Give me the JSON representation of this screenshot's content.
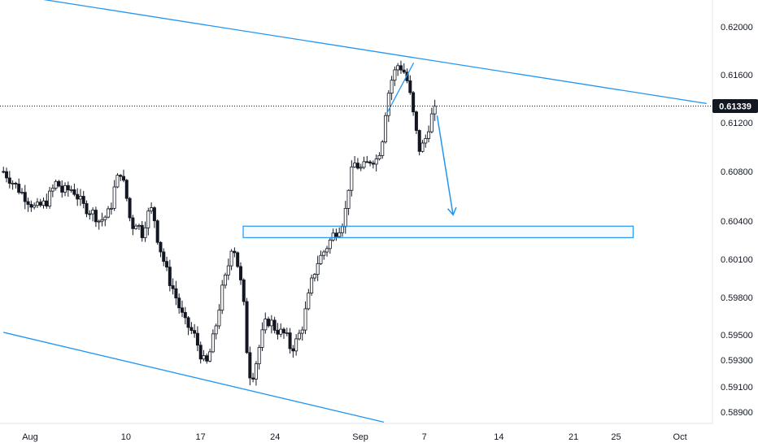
{
  "colors": {
    "candle": "#131722",
    "drawing": "#2196f3",
    "axis_text": "#131722",
    "axis_line": "#e0e3eb",
    "price_line": "#131722",
    "price_tag_bg": "#131722",
    "background": "#ffffff"
  },
  "current_price": {
    "value": 0.61339,
    "label": "0.61339"
  },
  "chart_data": {
    "type": "candlestick",
    "title": "",
    "xlabel": "",
    "ylabel": "",
    "grid": false,
    "x_axis": {
      "ticks": [
        {
          "label": "Aug",
          "day": 0
        },
        {
          "label": "10",
          "day": 9
        },
        {
          "label": "17",
          "day": 16
        },
        {
          "label": "24",
          "day": 23
        },
        {
          "label": "Sep",
          "day": 31
        },
        {
          "label": "7",
          "day": 37
        },
        {
          "label": "14",
          "day": 44
        },
        {
          "label": "21",
          "day": 51
        },
        {
          "label": "25",
          "day": 55
        },
        {
          "label": "Oct",
          "day": 61
        }
      ]
    },
    "y_axis": {
      "ylim": [
        0.5875,
        0.6215
      ],
      "ticks": [
        {
          "label": "0.62000",
          "value": 0.62
        },
        {
          "label": "0.61600",
          "value": 0.616
        },
        {
          "label": "0.61200",
          "value": 0.612
        },
        {
          "label": "0.60800",
          "value": 0.608
        },
        {
          "label": "0.60400",
          "value": 0.604
        },
        {
          "label": "0.60100",
          "value": 0.601
        },
        {
          "label": "0.59800",
          "value": 0.598
        },
        {
          "label": "0.59500",
          "value": 0.595
        },
        {
          "label": "0.59300",
          "value": 0.593
        },
        {
          "label": "0.59100",
          "value": 0.591
        },
        {
          "label": "0.58900",
          "value": 0.589
        }
      ]
    },
    "anchor_points": [
      [
        -2.5,
        0.608
      ],
      [
        -1.5,
        0.607
      ],
      [
        -0.5,
        0.606
      ],
      [
        0.5,
        0.605
      ],
      [
        1.5,
        0.6055
      ],
      [
        2.5,
        0.6072
      ],
      [
        3.0,
        0.6064
      ],
      [
        4.0,
        0.6066
      ],
      [
        5.0,
        0.6052
      ],
      [
        6.0,
        0.6046
      ],
      [
        6.5,
        0.604
      ],
      [
        7.0,
        0.6043
      ],
      [
        7.5,
        0.6048
      ],
      [
        8.0,
        0.607
      ],
      [
        8.5,
        0.608
      ],
      [
        9.0,
        0.6062
      ],
      [
        9.5,
        0.6035
      ],
      [
        10.0,
        0.604
      ],
      [
        10.5,
        0.603
      ],
      [
        11.0,
        0.6045
      ],
      [
        11.5,
        0.605
      ],
      [
        12.0,
        0.6025
      ],
      [
        12.5,
        0.601
      ],
      [
        13.0,
        0.5995
      ],
      [
        13.5,
        0.5985
      ],
      [
        14.0,
        0.5972
      ],
      [
        14.5,
        0.596
      ],
      [
        15.0,
        0.5955
      ],
      [
        15.5,
        0.5948
      ],
      [
        16.0,
        0.5935
      ],
      [
        16.5,
        0.5925
      ],
      [
        17.0,
        0.594
      ],
      [
        17.5,
        0.596
      ],
      [
        18.0,
        0.5985
      ],
      [
        18.5,
        0.6
      ],
      [
        19.0,
        0.6025
      ],
      [
        19.5,
        0.6005
      ],
      [
        20.0,
        0.598
      ],
      [
        20.5,
        0.592
      ],
      [
        21.0,
        0.592
      ],
      [
        21.5,
        0.594
      ],
      [
        22.0,
        0.5958
      ],
      [
        22.5,
        0.5962
      ],
      [
        23.0,
        0.5955
      ],
      [
        23.5,
        0.5952
      ],
      [
        24.0,
        0.595
      ],
      [
        24.5,
        0.5938
      ],
      [
        25.0,
        0.5945
      ],
      [
        25.5,
        0.5955
      ],
      [
        26.0,
        0.5975
      ],
      [
        26.5,
        0.5995
      ],
      [
        27.0,
        0.6008
      ],
      [
        27.5,
        0.6015
      ],
      [
        28.0,
        0.6022
      ],
      [
        28.5,
        0.603
      ],
      [
        29.0,
        0.6035
      ],
      [
        29.5,
        0.6042
      ],
      [
        30.0,
        0.6075
      ],
      [
        30.5,
        0.6087
      ],
      [
        31.0,
        0.6082
      ],
      [
        31.5,
        0.6085
      ],
      [
        32.0,
        0.609
      ],
      [
        32.5,
        0.609
      ],
      [
        33.0,
        0.6102
      ],
      [
        33.5,
        0.614
      ],
      [
        34.0,
        0.6158
      ],
      [
        34.5,
        0.6168
      ],
      [
        35.0,
        0.6165
      ],
      [
        35.5,
        0.6152
      ],
      [
        36.0,
        0.6125
      ],
      [
        36.5,
        0.6098
      ],
      [
        37.0,
        0.6103
      ],
      [
        37.5,
        0.612
      ],
      [
        38.0,
        0.6134
      ]
    ],
    "candle_count": 141,
    "candle_start_day": -2.5,
    "candle_step_days": 0.2892
  },
  "drawings": [
    {
      "name": "upper-channel-line",
      "kind": "line",
      "points": [
        [
          -2.5,
          0.6228
        ],
        [
          63.5,
          0.6136
        ]
      ]
    },
    {
      "name": "lower-channel-line",
      "kind": "line",
      "points": [
        [
          -2.5,
          0.5952
        ],
        [
          33.2,
          0.5882
        ]
      ]
    },
    {
      "name": "rising-wedge-line",
      "kind": "line",
      "points": [
        [
          33.5,
          0.6128
        ],
        [
          36.0,
          0.617
        ]
      ]
    },
    {
      "name": "support-zone",
      "kind": "rect",
      "points": [
        [
          20.0,
          0.6036
        ],
        [
          56.6,
          0.6027
        ]
      ]
    },
    {
      "name": "projection-arrow",
      "kind": "arrow",
      "points": [
        [
          38.2,
          0.6126
        ],
        [
          39.7,
          0.6045
        ]
      ]
    }
  ]
}
